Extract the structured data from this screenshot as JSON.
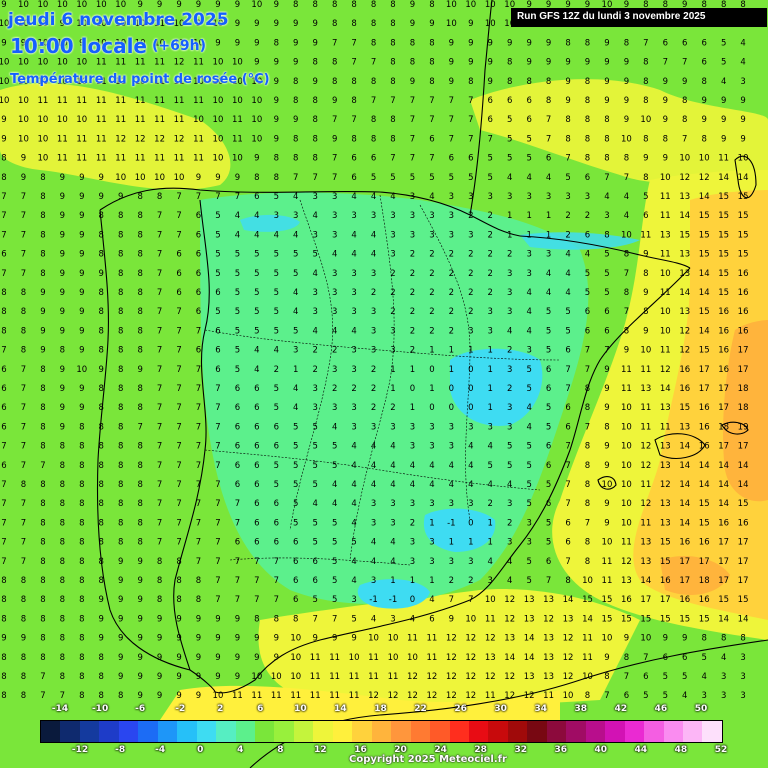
{
  "header": {
    "date": "jeudi 6 novembre 2025",
    "time": "10:00 locale",
    "offset": "(+69h)",
    "parameter": "Température du point de rosée (°C)",
    "run": "Run GFS 12Z du lundi 3 novembre 2025"
  },
  "footer": {
    "copyright": "Copyright 2025 Meteociel.fr"
  },
  "legend": {
    "top_labels": [
      "-14",
      "-10",
      "-6",
      "-2",
      "2",
      "6",
      "10",
      "14",
      "18",
      "22",
      "26",
      "30",
      "34",
      "38",
      "42",
      "46",
      "50"
    ],
    "bottom_labels": [
      "-12",
      "-8",
      "-4",
      "0",
      "4",
      "8",
      "12",
      "16",
      "20",
      "24",
      "28",
      "32",
      "36",
      "40",
      "44",
      "48",
      "52"
    ],
    "colors": [
      "#0a1a3c",
      "#0f2a6e",
      "#143a9e",
      "#1e3cc8",
      "#2a46f0",
      "#1c6cf5",
      "#1e96f8",
      "#26c0f8",
      "#3edcf2",
      "#56eec2",
      "#5cf08c",
      "#7ae63a",
      "#98f03c",
      "#c4f43c",
      "#eef53a",
      "#fff03c",
      "#ffd23c",
      "#ffb43c",
      "#ff963c",
      "#ff7a32",
      "#ff5a28",
      "#ff2e1e",
      "#e80c14",
      "#c80a0c",
      "#a00a0a",
      "#780812",
      "#8c0a3c",
      "#a00c64",
      "#b80e8c",
      "#d212b4",
      "#ea2ad2",
      "#f45ee2",
      "#fa8cf0",
      "#fcb6f6",
      "#fde0fb"
    ]
  },
  "map": {
    "background": "#7ae63a",
    "warm_zone_color": "#fff03c",
    "hot_zone_color": "#ffd23c",
    "hotter_zone_color": "#ffb43c",
    "cool_zone_color": "#5cf08c",
    "cold_zone_color": "#3edcf2",
    "coast_color": "#000000",
    "grid_values": [
      "9 10 10 10 10 10 10 9 9 9 9 9 9 10 9 8 8 8 8 8 8 9 8 10 10 10 10 9 9 9 9 10 9 8 8 9 8 8 8",
      "10 10 10 9 10 10 10 10 11 10 9 10 9 9 9 9 9 8 8 8 8 9 9 10 9 10 10 9 9 8 9 8 7 8 6 6 6 5 4",
      "9 9 10 10 9 10 10 10 10 11 10 9 9 9 8 9 9 7 7 8 8 8 8 9 9 9 9 9 9 8 8 9 8 7 6 6 6 5 4",
      "10 10 10 10 10 11 11 11 11 12 11 10 10 9 9 9 8 8 7 7 8 8 8 9 9 9 8 9 9 9 9 9 9 8 7 7 6 5 4",
      "10 10 10 10 10 11 11 10 11 11 10 10 10 10 9 8 9 8 8 8 8 9 8 9 8 9 8 8 8 9 8 9 9 8 9 9 8 4 3",
      "10 10 11 11 11 11 11 11 11 11 11 10 10 10 9 8 8 9 8 7 7 7 7 7 7 6 6 6 8 9 8 9 9 8 9 8 9 9 9",
      "9 10 10 10 10 11 11 11 11 11 10 10 11 10 9 9 8 7 7 8 8 7 7 7 7 6 5 6 7 8 8 8 9 10 9 8 9 9 9",
      "9 10 10 11 11 11 12 12 12 12 11 10 11 10 9 8 8 9 8 8 8 7 6 7 7 7 5 5 7 8 8 8 10 8 8 7 8 9 9",
      "8 9 10 11 11 11 11 11 11 11 11 10 10 9 8 8 8 7 6 6 7 7 7 6 6 5 5 5 6 7 8 8 8 9 9 10 10 11 10",
      "8 9 8 9 9 9 10 10 10 10 9 9 9 8 8 7 7 7 6 5 5 5 5 5 5 5 4 4 4 5 6 7 7 8 10 12 12 14 14",
      "7 7 8 9 9 9 9 8 8 7 7 7 7 6 5 4 3 3 4 4 4 3 4 3 3 3 3 3 3 3 3 4 4 5 11 13 14 15 15",
      "7 7 8 9 9 8 8 8 7 7 6 5 4 4 3 3 4 3 3 3 3 3 3 3 2 2 1 1 1 2 2 3 4 6 11 14 15 15 15",
      "7 7 8 9 9 8 8 8 7 7 6 5 4 4 4 4 3 3 4 4 3 3 3 3 3 2 1 1 1 2 6 8 10 11 13 15 15 15 15",
      "6 7 8 9 9 8 8 8 7 6 6 5 5 5 5 5 5 4 4 4 3 2 2 2 2 2 2 3 3 4 4 5 8 9 11 13 15 15 15",
      "7 7 8 9 9 9 8 8 7 6 6 5 5 5 5 5 4 3 3 3 2 2 2 2 2 2 3 3 4 4 5 5 7 8 10 13 14 15 16",
      "8 8 9 9 9 8 8 8 7 6 6 6 5 5 5 4 3 3 3 2 2 2 2 2 2 2 3 4 4 4 5 5 8 9 11 14 14 15 16",
      "8 8 9 9 9 8 8 8 7 7 6 5 5 5 5 4 3 3 3 3 2 2 2 2 2 3 3 4 5 5 6 6 7 8 10 13 15 16 16",
      "8 8 9 9 9 8 8 8 7 7 7 6 5 5 5 5 4 4 4 3 3 2 2 2 3 3 4 4 5 5 6 6 8 9 10 12 14 16 16",
      "7 8 9 8 9 8 8 8 7 7 6 6 5 4 4 3 2 2 3 3 3 2 1 1 1 1 2 3 5 6 7 7 9 10 11 12 15 16 17",
      "6 7 8 9 10 9 8 9 7 7 7 6 5 4 2 1 2 3 3 2 1 1 0 1 0 1 3 5 6 7 7 9 11 11 12 16 17 16 17",
      "6 7 8 9 9 8 8 8 7 7 7 7 6 6 5 4 3 2 2 2 1 0 1 0 0 1 2 5 6 7 8 9 11 13 14 16 17 17 18",
      "6 7 8 9 9 8 8 8 7 7 7 7 6 6 5 4 3 3 3 2 2 1 0 0 0 1 3 4 5 6 8 9 10 11 13 15 16 17 18",
      "6 7 8 9 8 8 8 7 7 7 7 7 6 6 6 5 5 4 3 3 3 3 3 3 3 3 3 4 5 6 7 8 10 11 11 13 16 18 19",
      "7 7 8 8 8 8 8 8 7 7 7 7 6 6 6 5 5 5 4 4 4 3 3 3 4 4 5 5 6 7 8 9 10 12 13 14 16 17 17",
      "6 7 7 8 8 8 8 8 7 7 7 7 6 6 5 5 5 5 4 4 4 4 4 4 4 5 5 5 6 7 8 9 10 12 13 14 14 14 14",
      "7 8 8 8 8 8 8 8 7 7 7 7 6 6 5 5 5 4 4 4 4 4 4 4 4 4 4 5 5 7 8 10 10 11 12 14 14 14 14",
      "7 7 8 8 8 8 8 8 7 7 7 7 7 6 6 5 4 4 4 3 3 3 3 3 3 2 3 5 6 7 8 9 10 12 13 14 15 14 15",
      "7 7 8 8 8 8 8 8 7 7 7 7 7 6 6 5 5 5 4 3 3 2 1 -1 0 1 2 3 5 6 7 9 10 11 13 14 15 16 16",
      "7 7 8 8 8 8 8 8 7 7 7 7 6 6 6 6 5 5 5 4 4 3 3 1 1 1 3 3 5 6 8 10 11 13 15 16 16 17 17",
      "7 7 8 8 8 8 9 9 8 8 7 7 7 7 7 6 6 5 4 4 4 3 3 3 3 4 4 5 6 7 8 11 12 13 15 17 17 17 17",
      "8 8 8 8 8 8 9 9 8 8 8 7 7 7 7 6 6 5 4 3 1 1 1 2 2 3 4 5 7 8 10 11 13 14 16 17 18 17 17",
      "8 8 8 8 8 9 9 9 8 8 8 7 7 7 7 6 5 5 3 -1 -1 0 4 7 7 10 12 13 13 14 15 15 16 17 17 16 16 15 15",
      "8 8 8 8 8 9 9 9 9 9 9 9 9 8 8 8 7 7 5 4 3 4 6 9 10 11 12 13 12 13 14 15 15 15 15 15 15 14 14",
      "9 9 8 8 8 9 9 9 9 9 9 9 9 9 9 10 9 9 9 10 10 11 11 12 12 12 13 14 13 12 11 10 9 10 9 9 8 8 8",
      "8 8 8 8 8 8 9 9 9 9 9 9 9 9 9 10 11 11 10 11 10 10 11 12 12 13 14 14 13 12 11 9 8 7 6 6 5 4 3",
      "8 8 7 8 8 8 9 9 9 9 9 9 9 10 10 10 11 11 11 11 11 12 12 12 12 12 12 13 13 12 10 8 7 6 5 5 4 3 3",
      "8 8 7 7 8 8 8 9 9 9 9 10 11 11 11 11 11 11 11 12 12 12 12 12 12 11 12 12 11 10 8 7 6 5 5 4 3 3 3",
      "9 8 8 8 8 9 9 9 9 10 11 11 11 12 12 12 12 12 12 12 12 13 12 12 12 12 12 11 10 9 7 6 5 5 4 3 3 3 3",
      "9 9 9 9 9 9 10 10 10 11 11 11 11 12 12 12 12 12 12 13 12 12 13 13 13 13 12 10 9 8 7 5 5 4 4 3 2 2 2"
    ]
  }
}
